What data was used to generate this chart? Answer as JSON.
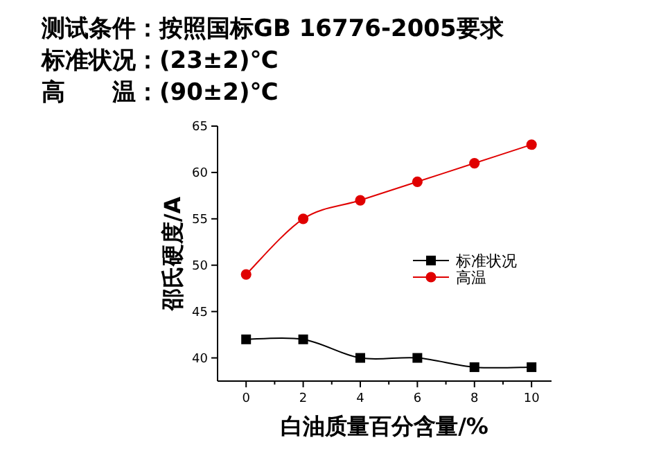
{
  "chart_data": {
    "type": "line",
    "title": "测试条件：按照国标GB 16776-2005要求",
    "subtitle": "标准状况：(23±2)℃",
    "annotations": [
      "高　　温：(90±2)℃"
    ],
    "xlabel": "白油质量百分含量/%",
    "ylabel": "邵氏硬度/A",
    "x": [
      0,
      2,
      4,
      6,
      8,
      10
    ],
    "xlim": [
      -1,
      10.7
    ],
    "ylim": [
      37.5,
      65
    ],
    "xticks": [
      0,
      {
        "value": 1,
        "label": null
      },
      2,
      {
        "value": 3,
        "label": null
      },
      4,
      {
        "value": 5,
        "label": null
      },
      6,
      {
        "value": 7,
        "label": null
      },
      8,
      {
        "value": 9,
        "label": null
      },
      10
    ],
    "yticks": [
      40,
      45,
      50,
      55,
      60,
      65
    ],
    "legend": "right",
    "series": [
      {
        "name": "标准状况",
        "color": "#000000",
        "marker": "square",
        "values": [
          42,
          42,
          40,
          40,
          39,
          39
        ]
      },
      {
        "name": "高温",
        "color": "#e00000",
        "marker": "circle",
        "values": [
          49,
          55,
          57,
          59,
          61,
          63
        ]
      }
    ]
  }
}
